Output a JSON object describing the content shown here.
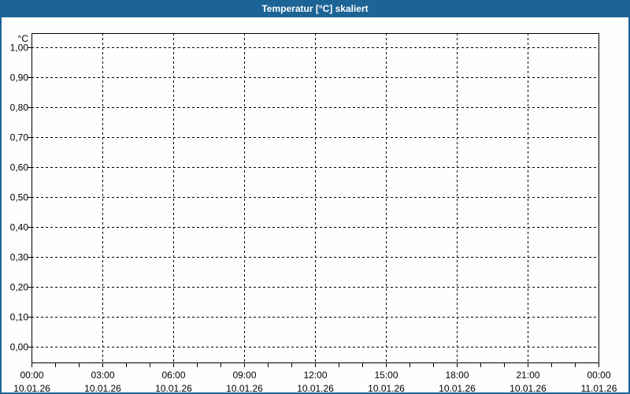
{
  "window": {
    "title": "Temperatur [°C] skaliert",
    "colors": {
      "titlebar": "#1d6496",
      "border": "#1d6496",
      "background": "#fdfefd",
      "title_text": "#ffffff",
      "grid": "#000000",
      "axis": "#000000",
      "label_text": "#000000"
    }
  },
  "chart_data": {
    "type": "line",
    "title": "Temperatur [°C] skaliert",
    "ylabel": "°C",
    "ylim": [
      0.0,
      1.0
    ],
    "y_tick_step": 0.1,
    "y_tick_labels": [
      "1,00",
      "0,90",
      "0,80",
      "0,70",
      "0,60",
      "0,50",
      "0,40",
      "0,30",
      "0,20",
      "0,10",
      "0,00"
    ],
    "x_axis": {
      "major_tick_interval_hours": 3,
      "minor_tick_interval_hours": 1,
      "ticks": [
        {
          "time": "00:00",
          "date": "10.01.26"
        },
        {
          "time": "03:00",
          "date": "10.01.26"
        },
        {
          "time": "06:00",
          "date": "10.01.26"
        },
        {
          "time": "09:00",
          "date": "10.01.26"
        },
        {
          "time": "12:00",
          "date": "10.01.26"
        },
        {
          "time": "15:00",
          "date": "10.01.26"
        },
        {
          "time": "18:00",
          "date": "10.01.26"
        },
        {
          "time": "21:00",
          "date": "10.01.26"
        },
        {
          "time": "00:00",
          "date": "11.01.26"
        }
      ]
    },
    "grid": "dashed",
    "legend": "none",
    "series": []
  }
}
